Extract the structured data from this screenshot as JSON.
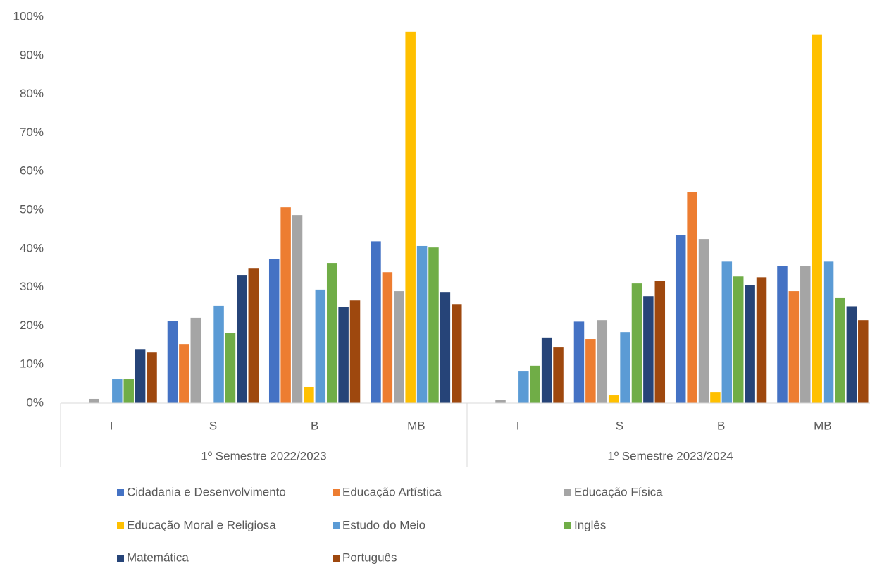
{
  "chart_data": {
    "type": "bar",
    "categories": [
      "I",
      "S",
      "B",
      "MB",
      "I",
      "S",
      "B",
      "MB"
    ],
    "groups": [
      "1º Semestre 2022/2023",
      "1º Semestre 2023/2024"
    ],
    "series": [
      {
        "name": "Cidadania e Desenvolvimento",
        "color": "#4472c4",
        "values": [
          0,
          21.2,
          37.4,
          41.9,
          0,
          21.1,
          43.6,
          35.5
        ]
      },
      {
        "name": "Educação Artística",
        "color": "#ed7d31",
        "values": [
          0,
          15.3,
          50.7,
          33.9,
          0,
          16.6,
          54.7,
          29
        ]
      },
      {
        "name": "Educação Física",
        "color": "#a5a5a5",
        "values": [
          1.1,
          22.1,
          48.7,
          29,
          0.8,
          21.5,
          42.5,
          35.5
        ]
      },
      {
        "name": "Educação Moral e Religiosa",
        "color": "#ffc000",
        "values": [
          0,
          0,
          4.2,
          96.2,
          0,
          2,
          2.9,
          95.5
        ]
      },
      {
        "name": "Estudo do Meio",
        "color": "#5b9bd5",
        "values": [
          6.2,
          25.2,
          29.4,
          40.7,
          8.2,
          18.4,
          36.8,
          36.8
        ]
      },
      {
        "name": "Inglês",
        "color": "#70ad47",
        "values": [
          6.2,
          18.1,
          36.3,
          40.3,
          9.7,
          31,
          32.8,
          27.2
        ]
      },
      {
        "name": "Matemática",
        "color": "#264478",
        "values": [
          14,
          33.2,
          25,
          28.8,
          17,
          27.7,
          30.6,
          25.1
        ]
      },
      {
        "name": "Português",
        "color": "#9e480e",
        "values": [
          13.1,
          35,
          26.6,
          25.5,
          14.4,
          31.7,
          32.6,
          21.5
        ]
      }
    ],
    "ylim": [
      0,
      100
    ],
    "yticks": [
      {
        "value": 0,
        "label": "0%"
      },
      {
        "value": 10,
        "label": "10%"
      },
      {
        "value": 20,
        "label": "20%"
      },
      {
        "value": 30,
        "label": "30%"
      },
      {
        "value": 40,
        "label": "40%"
      },
      {
        "value": 50,
        "label": "50%"
      },
      {
        "value": 60,
        "label": "60%"
      },
      {
        "value": 70,
        "label": "70%"
      },
      {
        "value": 80,
        "label": "80%"
      },
      {
        "value": 90,
        "label": "90%"
      },
      {
        "value": 100,
        "label": "100%"
      }
    ],
    "grid": false,
    "legend": "bottom"
  }
}
